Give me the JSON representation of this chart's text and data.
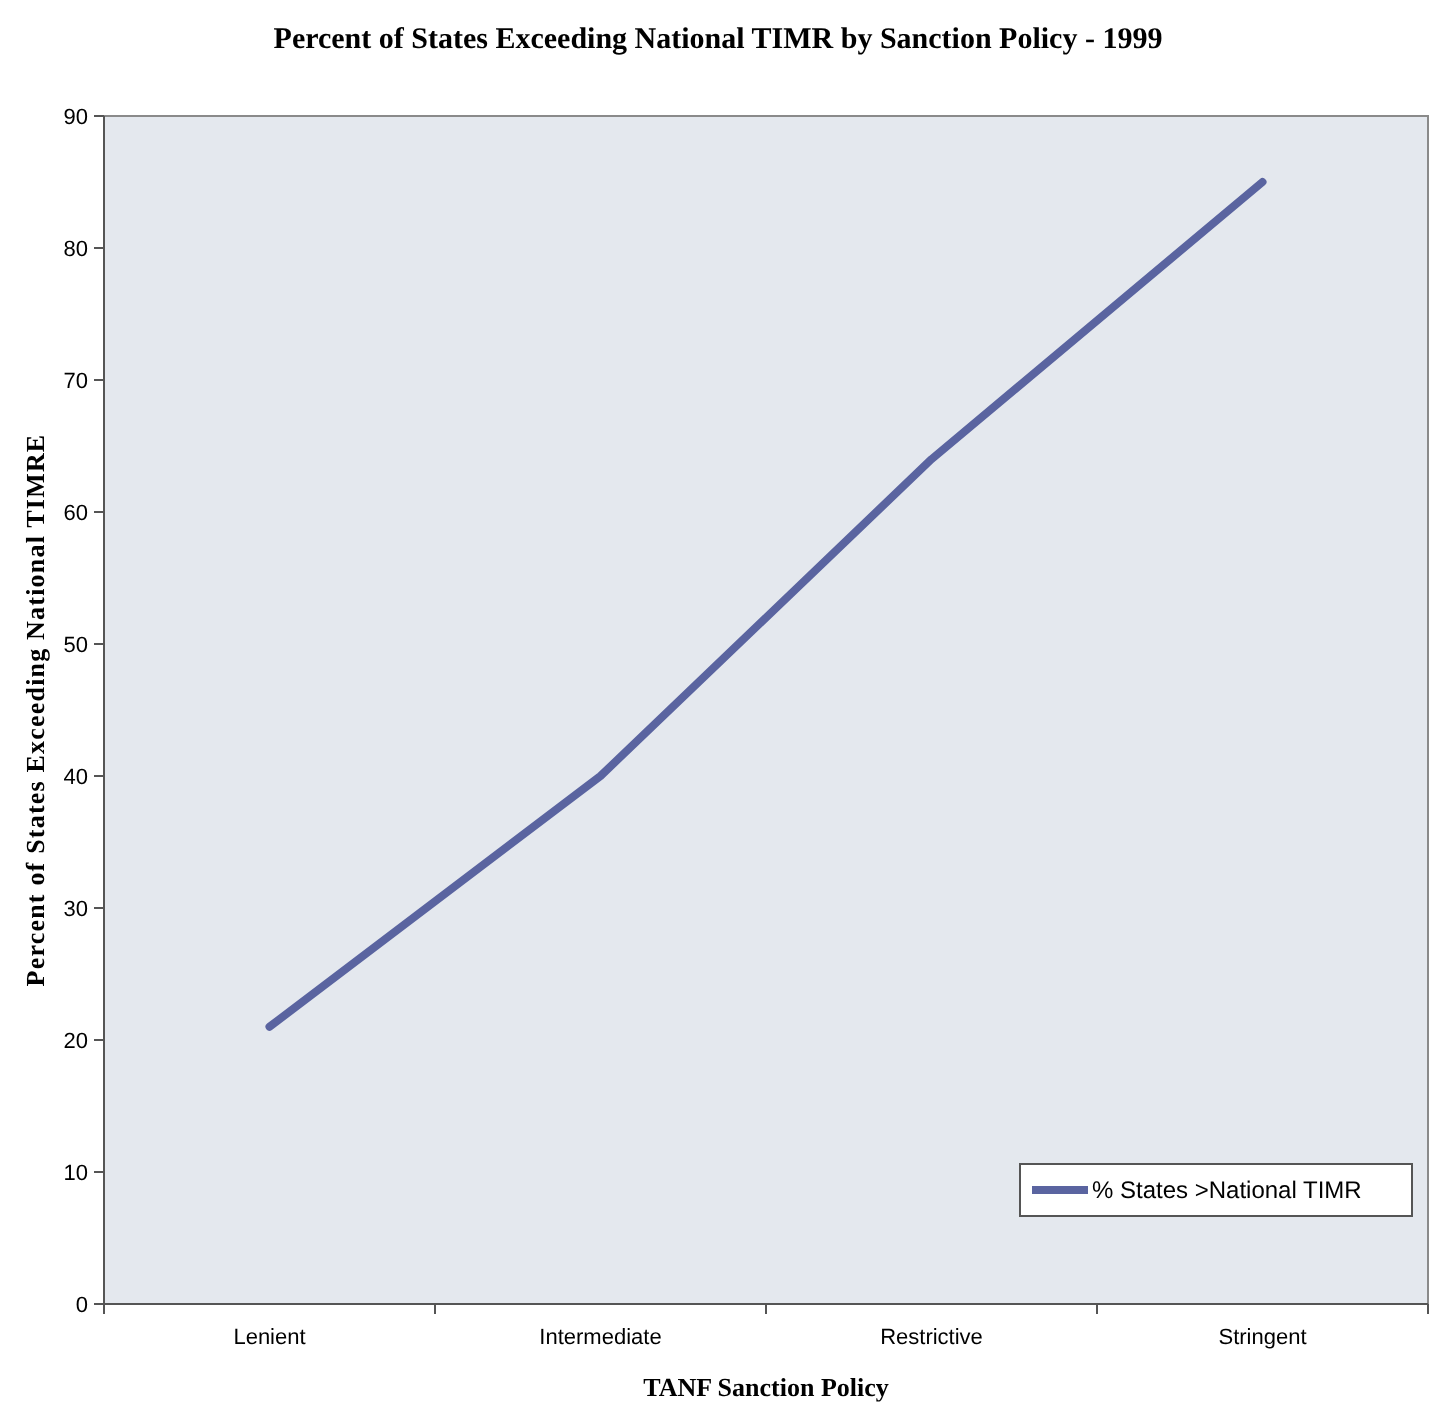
{
  "chart_data": {
    "type": "line",
    "title": "Percent of States Exceeding National TIMR by Sanction Policy - 1999",
    "xlabel": "TANF Sanction Policy",
    "ylabel": "Percent of States Exceeding National TIMRE",
    "categories": [
      "Lenient",
      "Intermediate",
      "Restrictive",
      "Stringent"
    ],
    "series": [
      {
        "name": "% States >National TIMR",
        "color": "#5a64a0",
        "values": [
          21,
          40,
          64,
          85
        ]
      }
    ],
    "ylim": [
      0,
      90
    ],
    "yticks": [
      0,
      10,
      20,
      30,
      40,
      50,
      60,
      70,
      80,
      90
    ],
    "grid": false,
    "legend": "bottom right",
    "marker": "none",
    "line_style": "solid"
  }
}
